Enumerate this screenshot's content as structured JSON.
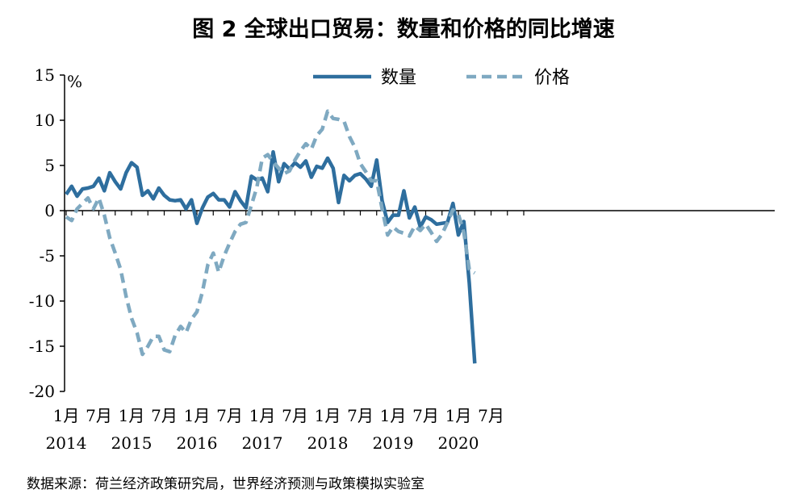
{
  "title": "图 2 全球出口贸易：数量和价格的同比增速",
  "source": "数据来源：荷兰经济政策研究局，世界经济预测与政策模拟实验室",
  "chart_data": {
    "type": "line",
    "unit_label": "%",
    "ylim": [
      -20,
      15
    ],
    "yticks": [
      15,
      10,
      5,
      0,
      -5,
      -10,
      -15,
      -20
    ],
    "x_tick_labels": [
      {
        "month": "1月",
        "year": "2014"
      },
      {
        "month": "7月",
        "year": ""
      },
      {
        "month": "1月",
        "year": "2015"
      },
      {
        "month": "7月",
        "year": ""
      },
      {
        "month": "1月",
        "year": "2016"
      },
      {
        "month": "7月",
        "year": ""
      },
      {
        "month": "1月",
        "year": "2017"
      },
      {
        "month": "7月",
        "year": ""
      },
      {
        "month": "1月",
        "year": "2018"
      },
      {
        "month": "7月",
        "year": ""
      },
      {
        "month": "1月",
        "year": "2019"
      },
      {
        "month": "7月",
        "year": ""
      },
      {
        "month": "1月",
        "year": "2020"
      },
      {
        "month": "7月",
        "year": ""
      }
    ],
    "x_start": "2014-01",
    "legend_position": "top-right",
    "series": [
      {
        "name": "数量",
        "color": "#2e6e9e",
        "style": "solid",
        "values": [
          1.8,
          2.7,
          1.6,
          2.4,
          2.5,
          2.7,
          3.6,
          2.2,
          4.2,
          3.2,
          2.4,
          4.2,
          5.3,
          4.8,
          1.7,
          2.2,
          1.3,
          2.5,
          1.7,
          1.2,
          1.1,
          1.2,
          0.2,
          1.2,
          -1.4,
          0.3,
          1.5,
          1.9,
          1.2,
          1.2,
          0.4,
          2.1,
          1.1,
          0.3,
          3.8,
          3.4,
          3.6,
          2.1,
          6.5,
          3.2,
          5.2,
          4.6,
          5.3,
          4.8,
          5.5,
          3.7,
          4.9,
          4.7,
          5.8,
          4.7,
          0.9,
          3.9,
          3.3,
          3.9,
          4.1,
          3.5,
          2.7,
          5.6,
          1.1,
          -1.3,
          -0.5,
          -0.5,
          2.2,
          -0.8,
          0.4,
          -1.8,
          -0.7,
          -1.0,
          -1.5,
          -1.4,
          -1.3,
          0.8,
          -2.7,
          -1.2,
          -8.0,
          -16.9
        ]
      },
      {
        "name": "价格",
        "color": "#7fa9c1",
        "style": "dashed",
        "values": [
          -0.7,
          -1.1,
          0.2,
          0.8,
          1.4,
          0.2,
          1.4,
          -0.5,
          -3.0,
          -4.7,
          -6.5,
          -9.5,
          -11.9,
          -13.5,
          -15.9,
          -15.0,
          -13.9,
          -13.9,
          -15.4,
          -15.6,
          -13.8,
          -12.8,
          -13.5,
          -12.0,
          -11.2,
          -9.0,
          -6.0,
          -4.7,
          -6.8,
          -5.0,
          -3.6,
          -2.3,
          -1.5,
          -1.3,
          0.6,
          2.6,
          5.8,
          6.2,
          5.4,
          4.7,
          4.1,
          4.4,
          5.6,
          6.6,
          7.4,
          6.8,
          8.3,
          9.0,
          11.0,
          10.2,
          10.1,
          9.9,
          8.2,
          7.0,
          5.2,
          4.3,
          3.3,
          3.3,
          0.2,
          -2.7,
          -1.8,
          -2.3,
          -2.5,
          -2.8,
          -1.7,
          -2.2,
          -1.5,
          -2.4,
          -3.4,
          -2.6,
          -1.3,
          0.1,
          -0.4,
          -2.4,
          -6.5,
          -6.9
        ]
      }
    ]
  }
}
